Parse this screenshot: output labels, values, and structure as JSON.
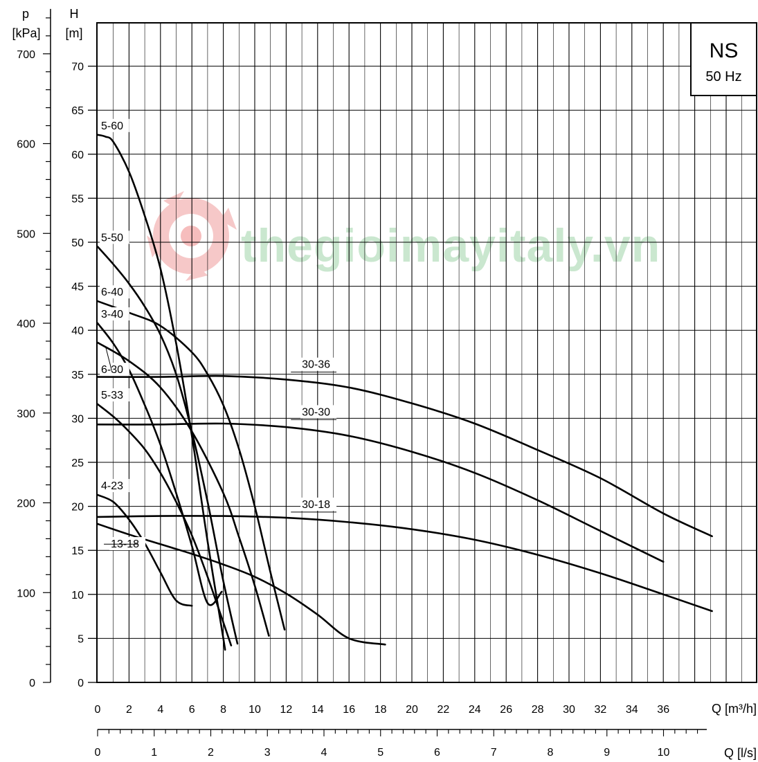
{
  "chart_data": {
    "type": "line",
    "title": "NS",
    "subtitle": "50 Hz",
    "watermark": "thegioimayitaly.vn",
    "xlabel": "Q [m³/h]",
    "xlabel2": "Q [l/s]",
    "ylabel": "H\n[m]",
    "ylabel_h_symbol": "H",
    "ylabel_h_unit": "[m]",
    "ylabel_p_symbol": "p",
    "ylabel_p_unit": "[kPa]",
    "xlim": [
      0,
      42
    ],
    "ylim": [
      0,
      75
    ],
    "grid": true,
    "x_ticks": [
      0,
      2,
      4,
      6,
      8,
      10,
      12,
      14,
      16,
      18,
      20,
      22,
      24,
      26,
      28,
      30,
      32,
      34,
      36
    ],
    "x_tick_labels": [
      "0",
      "2",
      "4",
      "6",
      "8",
      "10",
      "12",
      "14",
      "16",
      "18",
      "20",
      "22",
      "24",
      "26",
      "28",
      "30",
      "32",
      "34",
      "36"
    ],
    "ls_ticks": [
      0,
      1,
      2,
      3,
      4,
      5,
      6,
      7,
      8,
      9,
      10
    ],
    "ls_tick_labels": [
      "0",
      "1",
      "2",
      "3",
      "4",
      "5",
      "6",
      "7",
      "8",
      "9",
      "10"
    ],
    "y_ticks": [
      0,
      5,
      10,
      15,
      20,
      25,
      30,
      35,
      40,
      45,
      50,
      55,
      60,
      65,
      70
    ],
    "y_tick_labels": [
      "0",
      "5",
      "10",
      "15",
      "20",
      "25",
      "30",
      "35",
      "40",
      "45",
      "50",
      "55",
      "60",
      "65",
      "70"
    ],
    "p_ticks": [
      0,
      100,
      200,
      300,
      400,
      500,
      600,
      700
    ],
    "p_tick_labels": [
      "0",
      "100",
      "200",
      "300",
      "400",
      "500",
      "600",
      "700"
    ],
    "series": [
      {
        "name": "5-60",
        "x": [
          0,
          0.5,
          1,
          2,
          3,
          4,
          5,
          6,
          7,
          8,
          8.1
        ],
        "y": [
          62.2,
          62,
          61.4,
          58,
          53,
          47,
          38.5,
          28,
          16,
          5,
          3.8
        ]
      },
      {
        "name": "5-50",
        "x": [
          0,
          1,
          2,
          3,
          4,
          5,
          6,
          7,
          8,
          8.9
        ],
        "y": [
          49.5,
          47.5,
          45.3,
          42.7,
          39.5,
          35,
          28.5,
          20.5,
          11.5,
          4.4
        ]
      },
      {
        "name": "6-40",
        "x": [
          0,
          2,
          4,
          6,
          7,
          8,
          9,
          10,
          11,
          11.9
        ],
        "y": [
          43.3,
          42,
          40.5,
          37.5,
          35,
          31.5,
          26.5,
          20,
          12.5,
          6
        ]
      },
      {
        "name": "3-40",
        "x": [
          0,
          1,
          2,
          3,
          4,
          5,
          6,
          7,
          7.9
        ],
        "y": [
          40.8,
          38.5,
          35.5,
          31.5,
          27,
          21.5,
          15.5,
          9,
          10.3
        ]
      },
      {
        "name": "6-30",
        "x": [
          0,
          2,
          4,
          6,
          8,
          9,
          10,
          10.9
        ],
        "y": [
          38.6,
          36.5,
          33.5,
          28.5,
          21.5,
          16.5,
          11,
          5.3
        ]
      },
      {
        "name": "5-33",
        "x": [
          0,
          1,
          2,
          3,
          4,
          5,
          6,
          7,
          8.5
        ],
        "y": [
          31.6,
          30.2,
          28.5,
          26.5,
          23.8,
          20.5,
          16.7,
          12,
          4.2
        ]
      },
      {
        "name": "4-23",
        "x": [
          0,
          1,
          2,
          3,
          4,
          5,
          6
        ],
        "y": [
          21.3,
          20.5,
          18.5,
          15.8,
          12.5,
          9.3,
          8.7
        ]
      },
      {
        "name": "13-18",
        "x": [
          0,
          2,
          4,
          6,
          8,
          10,
          12,
          14,
          16,
          18.3
        ],
        "y": [
          18,
          16.8,
          15.7,
          14.6,
          13.4,
          12,
          10.1,
          7.7,
          5,
          4.3
        ]
      },
      {
        "name": "30-36",
        "x": [
          0,
          4,
          8,
          12,
          16,
          20,
          24,
          28,
          32,
          36,
          39.1
        ],
        "y": [
          34.7,
          34.7,
          34.8,
          34.4,
          33.5,
          31.7,
          29.4,
          26.4,
          23.2,
          19.2,
          16.6
        ]
      },
      {
        "name": "30-30",
        "x": [
          0,
          4,
          8,
          12,
          16,
          20,
          24,
          28,
          32,
          36
        ],
        "y": [
          29.3,
          29.3,
          29.4,
          29.0,
          28.0,
          26.2,
          23.8,
          20.7,
          17.2,
          13.7
        ]
      },
      {
        "name": "30-18",
        "x": [
          0,
          4,
          8,
          12,
          16,
          20,
          24,
          28,
          32,
          36,
          39.1
        ],
        "y": [
          18.8,
          18.9,
          18.9,
          18.7,
          18.2,
          17.4,
          16.2,
          14.5,
          12.4,
          10.0,
          8.1
        ]
      }
    ]
  }
}
